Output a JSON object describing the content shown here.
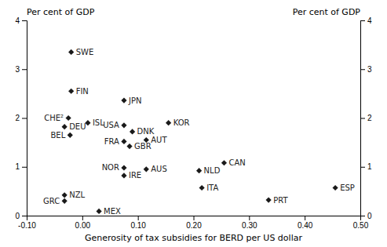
{
  "chart_data": {
    "type": "scatter",
    "xlabel": "Generosity of tax subsidies for BERD per US dollar",
    "ylabel": "Per cent of GDP",
    "y2label": "Per cent of GDP",
    "labels": [
      "SWE",
      "FIN",
      "JPN",
      "CHE²",
      "ISL",
      "DEU",
      "BEL",
      "USA",
      "DNK",
      "KOR",
      "FRA",
      "AUT",
      "GBR",
      "NOR",
      "IRE",
      "AUS",
      "NLD",
      "CAN",
      "ITA",
      "ESP",
      "PRT",
      "NZL",
      "GRC",
      "MEX"
    ],
    "x": [
      -0.02,
      -0.02,
      0.075,
      -0.025,
      0.01,
      -0.032,
      -0.022,
      0.075,
      0.09,
      0.155,
      0.075,
      0.115,
      0.085,
      0.075,
      0.075,
      0.115,
      0.21,
      0.255,
      0.215,
      0.455,
      0.335,
      -0.032,
      -0.032,
      0.03
    ],
    "values": [
      3.35,
      2.55,
      2.36,
      2.0,
      1.9,
      1.82,
      1.65,
      1.85,
      1.72,
      1.9,
      1.52,
      1.55,
      1.42,
      0.98,
      0.82,
      0.95,
      0.92,
      1.08,
      0.57,
      0.57,
      0.32,
      0.42,
      0.3,
      0.09
    ],
    "xlim": [
      -0.1,
      0.5
    ],
    "xticks": [
      {
        "value": -0.1,
        "label": "-0.10"
      },
      {
        "value": 0.0,
        "label": "0.00"
      },
      {
        "value": 0.1,
        "label": "0.10"
      },
      {
        "value": 0.2,
        "label": "0.20"
      },
      {
        "value": 0.3,
        "label": "0.30"
      },
      {
        "value": 0.4,
        "label": "0.40"
      },
      {
        "value": 0.5,
        "label": "0.50"
      }
    ],
    "ylim": [
      0,
      4
    ],
    "yticks": [
      0,
      1,
      2,
      3,
      4
    ],
    "y2lim": [
      0,
      4
    ],
    "y2ticks": [
      0,
      1,
      2,
      3,
      4
    ],
    "color": "#1a1a1a",
    "marker": "diamond",
    "grid": false
  }
}
